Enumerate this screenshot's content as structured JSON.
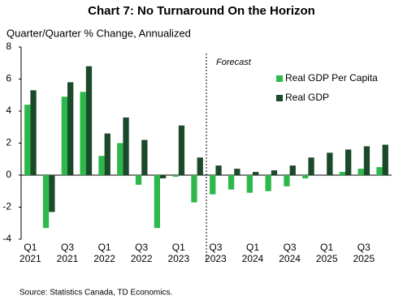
{
  "chart_data": {
    "type": "bar",
    "title": "Chart 7: No Turnaround On the Horizon",
    "y_label": "Quarter/Quarter % Change, Annualized",
    "source": "Source: Statistics Canada, TD Economics.",
    "annotation": "Forecast",
    "categories": [
      "Q1\n2021",
      null,
      "Q3\n2021",
      null,
      "Q1\n2022",
      null,
      "Q3\n2022",
      null,
      "Q1\n2023",
      null,
      "Q3\n2023",
      null,
      "Q1\n2024",
      null,
      "Q3\n2024",
      null,
      "Q1\n2025",
      null,
      "Q3\n2025",
      null
    ],
    "series": [
      {
        "name": "Real GDP Per Capita",
        "color": "#2db84b",
        "values": [
          4.4,
          -3.3,
          4.9,
          5.2,
          1.2,
          2.0,
          -0.6,
          -3.3,
          -0.1,
          -1.7,
          -1.2,
          -0.9,
          -1.1,
          -1.0,
          -0.7,
          -0.2,
          0.0,
          0.2,
          0.4,
          0.5
        ]
      },
      {
        "name": "Real GDP",
        "color": "#1b4a2a",
        "values": [
          5.3,
          -2.3,
          5.8,
          6.8,
          2.6,
          3.6,
          2.2,
          -0.2,
          3.1,
          1.1,
          0.6,
          0.4,
          0.2,
          0.3,
          0.6,
          1.1,
          1.4,
          1.6,
          1.8,
          1.9
        ]
      }
    ],
    "ylim": [
      -4,
      8
    ],
    "yticks": [
      -4,
      -2,
      0,
      2,
      4,
      6,
      8
    ],
    "legend": "upper right"
  }
}
